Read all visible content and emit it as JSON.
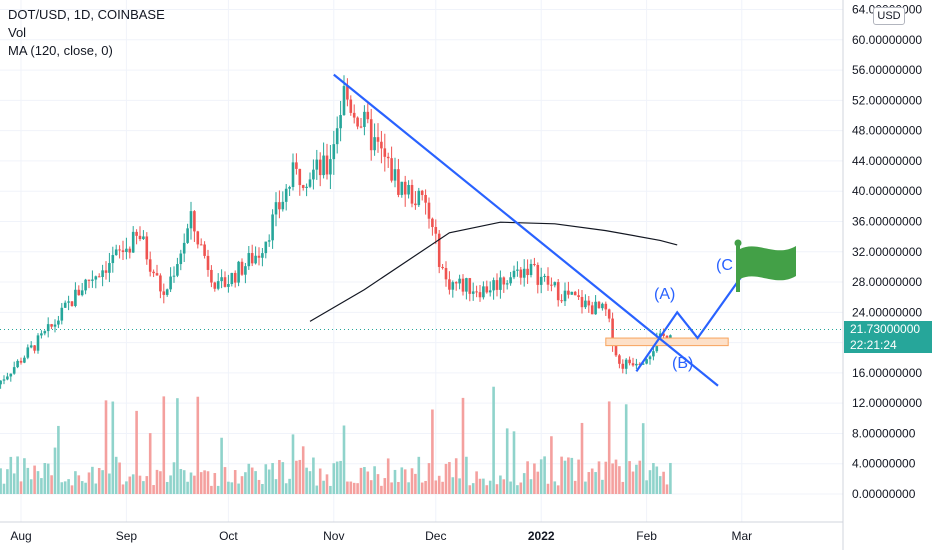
{
  "legend": {
    "symbol": "DOT/USD, 1D, COINBASE",
    "vol": "Vol",
    "ma": "MA (120, close, 0)"
  },
  "currency_badge": "USD",
  "last_price_label": "21.73000000",
  "countdown_label": "22:21:24",
  "annotations": {
    "wave_a": "(A)",
    "wave_b": "(B)",
    "wave_c": "(C"
  },
  "colors": {
    "up": "#26a69a",
    "down": "#ef5350",
    "up_vol": "#8fd3cb",
    "down_vol": "#f4a09e",
    "trendline": "#2962ff",
    "ma": "#131722",
    "zone_fill": "#fde0c8",
    "zone_stroke": "#f7a35c",
    "flag": "#43a047",
    "wave_text": "#2962ff"
  },
  "chart_data": {
    "type": "candlestick",
    "title": "DOT/USD, 1D, COINBASE",
    "x_labels": [
      "Aug",
      "Sep",
      "Oct",
      "Nov",
      "Dec",
      "2022",
      "Feb",
      "Mar"
    ],
    "y_ticks": [
      "64.00000000",
      "60.00000000",
      "56.00000000",
      "52.00000000",
      "48.00000000",
      "44.00000000",
      "40.00000000",
      "36.00000000",
      "32.00000000",
      "28.00000000",
      "24.00000000",
      "20.00000000",
      "16.00000000",
      "12.00000000",
      "8.00000000",
      "4.00000000",
      "0.00000000"
    ],
    "ylim": [
      0,
      64
    ],
    "last_price": 21.73,
    "trend_path": [
      [
        "2021-07-25",
        14.5
      ],
      [
        "2021-08-10",
        22
      ],
      [
        "2021-08-20",
        28
      ],
      [
        "2021-09-05",
        34
      ],
      [
        "2021-09-12",
        26
      ],
      [
        "2021-09-20",
        36
      ],
      [
        "2021-09-28",
        27
      ],
      [
        "2021-10-10",
        32
      ],
      [
        "2021-10-20",
        42
      ],
      [
        "2021-10-30",
        43
      ],
      [
        "2021-11-04",
        53
      ],
      [
        "2021-11-12",
        47
      ],
      [
        "2021-11-20",
        41
      ],
      [
        "2021-11-28",
        38
      ],
      [
        "2021-12-04",
        28
      ],
      [
        "2021-12-15",
        27
      ],
      [
        "2021-12-28",
        30
      ],
      [
        "2022-01-05",
        27
      ],
      [
        "2022-01-14",
        25
      ],
      [
        "2022-01-20",
        24
      ],
      [
        "2022-01-24",
        17
      ],
      [
        "2022-01-31",
        18
      ],
      [
        "2022-02-08",
        21.7
      ]
    ],
    "ma_120": [
      [
        "2021-10-25",
        22.8
      ],
      [
        "2021-11-10",
        27
      ],
      [
        "2021-11-25",
        31.5
      ],
      [
        "2021-12-05",
        34.5
      ],
      [
        "2021-12-20",
        35.9
      ],
      [
        "2022-01-05",
        35.7
      ],
      [
        "2022-01-20",
        34.8
      ],
      [
        "2022-02-05",
        33.5
      ],
      [
        "2022-02-10",
        32.9
      ]
    ],
    "trendline": [
      [
        "2021-11-01",
        55.4
      ],
      [
        "2022-02-22",
        14.3
      ]
    ],
    "projection": [
      [
        "2022-01-29",
        16.2
      ],
      [
        "2022-02-10",
        24
      ],
      [
        "2022-02-16",
        20.6
      ],
      [
        "2022-03-01",
        28.8
      ]
    ],
    "support_zone": [
      19.6,
      20.6
    ],
    "support_zone_range": [
      "2022-01-20",
      "2022-02-25"
    ]
  }
}
